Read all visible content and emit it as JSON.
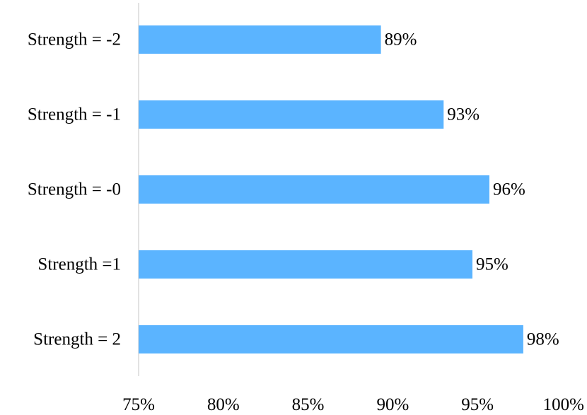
{
  "chart_data": {
    "type": "bar",
    "orientation": "horizontal",
    "title": "",
    "xlabel": "",
    "ylabel": "",
    "categories": [
      "Strength = -2",
      "Strength = -1",
      "Strength = -0",
      "Strength =1",
      "Strength = 2"
    ],
    "values": [
      0.893,
      0.93,
      0.957,
      0.947,
      0.977
    ],
    "data_labels": [
      "89%",
      "93%",
      "96%",
      "95%",
      "98%"
    ],
    "xlim": [
      0.75,
      1.0
    ],
    "x_ticks": [
      0.75,
      0.8,
      0.85,
      0.9,
      0.95,
      1.0
    ],
    "x_tick_labels": [
      "75%",
      "80%",
      "85%",
      "90%",
      "95%",
      "100%"
    ],
    "grid": false,
    "legend": "none",
    "bar_color": "#5BB4FF",
    "axis_line_color": "#D9D9D9"
  }
}
